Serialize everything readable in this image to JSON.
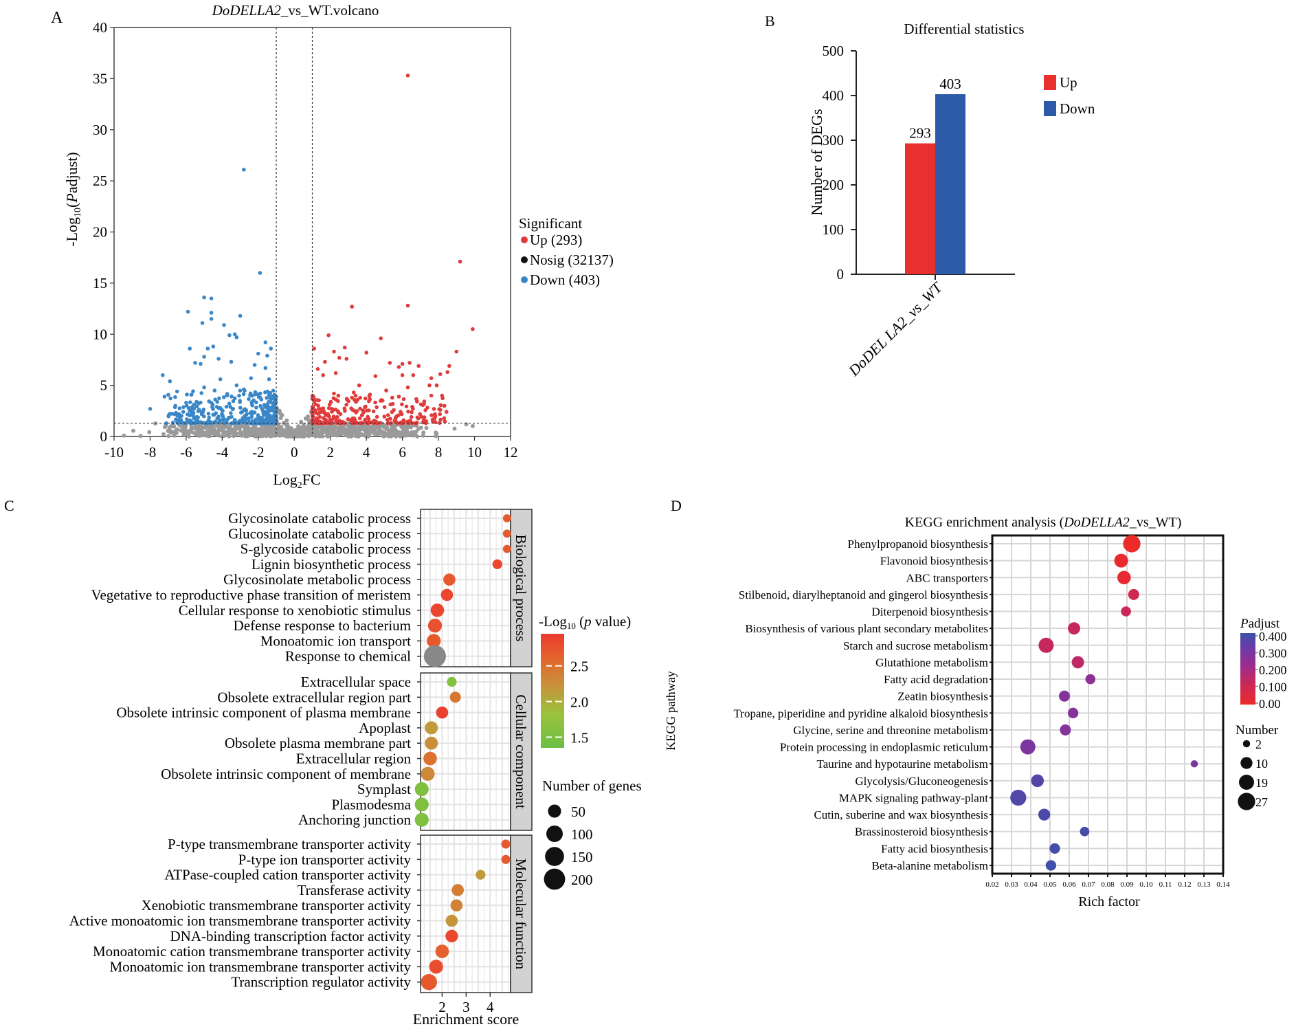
{
  "panels": {
    "A": "A",
    "B": "B",
    "C": "C",
    "D": "D"
  },
  "chart_data": [
    {
      "id": "volcano",
      "type": "scatter",
      "title_italic": "DoDELLA2",
      "title_rest": "_vs_WT.volcano",
      "xlabel": "Log2FC",
      "xlabel_main": "Log",
      "xlabel_sub": "2",
      "xlabel_tail": "FC",
      "ylabel_pre": "-Log",
      "ylabel_sub": "10",
      "ylabel_italic": "P",
      "ylabel_tail": "adjust)",
      "ylabel_open": "(",
      "xlim": [
        -10,
        12
      ],
      "ylim": [
        0,
        40
      ],
      "xticks": [
        "-10",
        "-8",
        "-6",
        "-4",
        "-2",
        "0",
        "2",
        "4",
        "6",
        "8",
        "10",
        "12"
      ],
      "xtick_values": [
        -10,
        -8,
        -6,
        -4,
        -2,
        0,
        2,
        4,
        6,
        8,
        10,
        12
      ],
      "yticks": [
        "0",
        "5",
        "10",
        "15",
        "20",
        "25",
        "30",
        "35",
        "40"
      ],
      "ytick_values": [
        0,
        5,
        10,
        15,
        20,
        25,
        30,
        35,
        40
      ],
      "thresholds": {
        "log2fc": [
          -1,
          1
        ],
        "neglog10_padj": 1.3
      },
      "legend_title": "Significant",
      "legend": [
        {
          "label": "Up (293)",
          "color": "#e03a3a"
        },
        {
          "label": "Nosig (32137)",
          "color": "#111111"
        },
        {
          "label": "Down (403)",
          "color": "#3a87c8"
        }
      ],
      "colors": {
        "up": "#e03a3a",
        "down": "#3a87c8",
        "nosig": "#9a9a9a"
      },
      "highlight_points": {
        "up": [
          [
            6.3,
            35.3
          ],
          [
            9.2,
            17.1
          ],
          [
            9.9,
            10.5
          ],
          [
            6.3,
            12.8
          ],
          [
            3.2,
            12.7
          ],
          [
            9.0,
            8.3
          ],
          [
            1.9,
            9.9
          ],
          [
            4.8,
            9.6
          ],
          [
            4.0,
            8.2
          ],
          [
            2.8,
            8.7
          ],
          [
            2.2,
            8.3
          ],
          [
            1.1,
            8.6
          ],
          [
            2.5,
            7.7
          ],
          [
            2.9,
            7.6
          ],
          [
            1.7,
            7.3
          ],
          [
            6.4,
            7.2
          ],
          [
            6.0,
            7.1
          ],
          [
            5.8,
            6.8
          ],
          [
            6.9,
            6.9
          ],
          [
            5.3,
            7.2
          ],
          [
            8.6,
            6.9
          ],
          [
            8.5,
            6.3
          ],
          [
            8.1,
            6.1
          ],
          [
            7.6,
            5.7
          ],
          [
            7.5,
            5.0
          ],
          [
            7.9,
            5.0
          ],
          [
            1.3,
            6.6
          ],
          [
            2.3,
            6.2
          ],
          [
            1.6,
            6.0
          ],
          [
            4.5,
            5.9
          ],
          [
            6.0,
            6.0
          ],
          [
            6.6,
            6.0
          ],
          [
            3.6,
            5.0
          ],
          [
            5.1,
            4.5
          ],
          [
            6.3,
            4.8
          ],
          [
            2.2,
            4.2
          ],
          [
            3.3,
            4.3
          ],
          [
            4.2,
            4.1
          ],
          [
            5.8,
            3.9
          ],
          [
            7.2,
            3.2
          ],
          [
            8.1,
            2.6
          ],
          [
            7.6,
            4.0
          ],
          [
            8.2,
            4.0
          ]
        ],
        "down": [
          [
            -2.8,
            26.1
          ],
          [
            -1.9,
            16.0
          ],
          [
            -5.0,
            13.6
          ],
          [
            -4.6,
            13.5
          ],
          [
            -5.9,
            12.2
          ],
          [
            -4.6,
            12.1
          ],
          [
            -3.0,
            11.8
          ],
          [
            -4.6,
            11.5
          ],
          [
            -5.1,
            11.1
          ],
          [
            -3.9,
            10.9
          ],
          [
            -3.3,
            10.0
          ],
          [
            -3.6,
            9.9
          ],
          [
            -3.2,
            9.7
          ],
          [
            -1.6,
            9.2
          ],
          [
            -2.0,
            8.1
          ],
          [
            -5.8,
            8.6
          ],
          [
            -4.5,
            8.8
          ],
          [
            -4.8,
            8.6
          ],
          [
            -1.3,
            8.6
          ],
          [
            -1.5,
            7.9
          ],
          [
            -5.0,
            7.8
          ],
          [
            -4.2,
            7.6
          ],
          [
            -5.5,
            7.2
          ],
          [
            -5.2,
            7.1
          ],
          [
            -3.5,
            7.3
          ],
          [
            -2.2,
            7.0
          ],
          [
            -7.3,
            6.0
          ],
          [
            -6.9,
            5.4
          ],
          [
            -7.2,
            3.9
          ],
          [
            -8.0,
            2.7
          ],
          [
            -6.6,
            3.0
          ],
          [
            -6.0,
            3.3
          ],
          [
            -5.7,
            4.1
          ],
          [
            -5.0,
            4.8
          ],
          [
            -4.1,
            5.6
          ],
          [
            -3.2,
            5.0
          ],
          [
            -2.8,
            4.6
          ],
          [
            -1.4,
            5.6
          ],
          [
            -1.6,
            6.7
          ],
          [
            -2.4,
            5.7
          ],
          [
            -7.1,
            1.3
          ]
        ]
      },
      "density": {
        "up": {
          "xmin": 1.0,
          "xmax": 8.6,
          "ymin": 1.3,
          "ymax": 4.0,
          "n": 260
        },
        "down": {
          "xmin": -7.0,
          "xmax": -1.0,
          "ymin": 1.3,
          "ymax": 4.5,
          "n": 360
        },
        "nosig": {
          "xmin": -9.7,
          "xmax": 10.4,
          "ymin": 0.0,
          "ymax": 1.3,
          "n": 900
        }
      }
    },
    {
      "id": "diff_stats",
      "type": "bar",
      "title": "Differential statistics",
      "ylabel": "Number of DEGs",
      "categories": [
        "DoDEL LA2_vs_WT"
      ],
      "series": [
        {
          "name": "Up",
          "values": [
            293
          ],
          "color": "#e8312f"
        },
        {
          "name": "Down",
          "values": [
            403
          ],
          "color": "#2d5aa8"
        }
      ],
      "data_labels": [
        "293",
        "403"
      ],
      "ylim": [
        0,
        500
      ],
      "yticks": [
        "0",
        "100",
        "200",
        "300",
        "400",
        "500"
      ],
      "ytick_values": [
        0,
        100,
        200,
        300,
        400,
        500
      ],
      "legend": [
        {
          "label": "Up",
          "color": "#e8312f"
        },
        {
          "label": "Down",
          "color": "#2d5aa8"
        }
      ],
      "legend_position": "right"
    },
    {
      "id": "go_enrichment",
      "type": "scatter",
      "xlabel": "Enrichment score",
      "xlim": [
        1.1,
        4.85
      ],
      "xticks": [
        "2",
        "3",
        "4"
      ],
      "xtick_values": [
        2,
        3,
        4
      ],
      "facets": [
        {
          "name": "Biological process",
          "terms": [
            {
              "label": "Glycosinolate catabolic process",
              "x": 4.7,
              "neglog10p": 2.7,
              "genes": 10
            },
            {
              "label": "Glucosinolate catabolic process",
              "x": 4.7,
              "neglog10p": 2.7,
              "genes": 10
            },
            {
              "label": "S-glycoside catabolic process",
              "x": 4.7,
              "neglog10p": 2.7,
              "genes": 10
            },
            {
              "label": "Lignin biosynthetic process",
              "x": 4.3,
              "neglog10p": 2.85,
              "genes": 20
            },
            {
              "label": "Glycosinolate metabolic process",
              "x": 2.3,
              "neglog10p": 2.7,
              "genes": 40
            },
            {
              "label": "Vegetative to reproductive phase transition of meristem",
              "x": 2.2,
              "neglog10p": 2.85,
              "genes": 40
            },
            {
              "label": "Cellular response to xenobiotic stimulus",
              "x": 1.8,
              "neglog10p": 2.85,
              "genes": 55
            },
            {
              "label": "Defense response to bacterium",
              "x": 1.7,
              "neglog10p": 2.75,
              "genes": 60
            },
            {
              "label": "Monoatomic ion transport",
              "x": 1.65,
              "neglog10p": 2.7,
              "genes": 60
            },
            {
              "label": "Response to chemical",
              "x": 1.7,
              "neglog10p": null,
              "genes": 200
            }
          ]
        },
        {
          "name": "Cellular component",
          "terms": [
            {
              "label": "Extracellular space",
              "x": 2.4,
              "neglog10p": 1.6,
              "genes": 20
            },
            {
              "label": "Obsolete extracellular region part",
              "x": 2.55,
              "neglog10p": 2.45,
              "genes": 30
            },
            {
              "label": "Obsolete intrinsic component of plasma membrane",
              "x": 2.0,
              "neglog10p": 2.9,
              "genes": 40
            },
            {
              "label": "Apoplast",
              "x": 1.55,
              "neglog10p": 2.15,
              "genes": 50
            },
            {
              "label": "Obsolete plasma membrane part",
              "x": 1.55,
              "neglog10p": 2.25,
              "genes": 50
            },
            {
              "label": "Extracellular region",
              "x": 1.5,
              "neglog10p": 2.5,
              "genes": 55
            },
            {
              "label": "Obsolete intrinsic component of membrane",
              "x": 1.4,
              "neglog10p": 2.3,
              "genes": 60
            },
            {
              "label": "Symplast",
              "x": 1.15,
              "neglog10p": 1.55,
              "genes": 60
            },
            {
              "label": "Plasmodesma",
              "x": 1.15,
              "neglog10p": 1.55,
              "genes": 60
            },
            {
              "label": "Anchoring junction",
              "x": 1.15,
              "neglog10p": 1.55,
              "genes": 60
            }
          ]
        },
        {
          "name": "Molecular function",
          "terms": [
            {
              "label": "P-type transmembrane transporter activity",
              "x": 4.65,
              "neglog10p": 2.7,
              "genes": 15
            },
            {
              "label": "P-type ion transporter activity",
              "x": 4.65,
              "neglog10p": 2.7,
              "genes": 15
            },
            {
              "label": "ATPase-coupled cation transporter activity",
              "x": 3.6,
              "neglog10p": 2.15,
              "genes": 20
            },
            {
              "label": "Transferase activity",
              "x": 2.65,
              "neglog10p": 2.4,
              "genes": 40
            },
            {
              "label": "Xenobiotic transmembrane transporter activity",
              "x": 2.6,
              "neglog10p": 2.35,
              "genes": 40
            },
            {
              "label": "Active monoatomic ion transmembrane transporter activity",
              "x": 2.4,
              "neglog10p": 2.2,
              "genes": 40
            },
            {
              "label": "DNA-binding transcription factor activity",
              "x": 2.4,
              "neglog10p": 2.85,
              "genes": 45
            },
            {
              "label": "Monoatomic cation transmembrane transporter activity",
              "x": 2.0,
              "neglog10p": 2.65,
              "genes": 55
            },
            {
              "label": "Monoatomic ion transmembrane transporter activity",
              "x": 1.75,
              "neglog10p": 2.8,
              "genes": 60
            },
            {
              "label": "Transcription regulator activity",
              "x": 1.45,
              "neglog10p": 2.7,
              "genes": 90
            }
          ]
        }
      ],
      "color_legend": {
        "title_pre": "-Log",
        "title_sub": "10",
        "title_mid": " (",
        "title_italic": "p",
        "title_tail": " value)",
        "ticks": [
          "2.5",
          "2.0",
          "1.5"
        ],
        "tick_values": [
          2.5,
          2.0,
          1.5
        ],
        "range": [
          1.35,
          2.95
        ],
        "colors": [
          "#6cbf45",
          "#9cc23c",
          "#c8913a",
          "#e4622d",
          "#ec3a2f"
        ]
      },
      "size_legend": {
        "title": "Number of genes",
        "labels": [
          "50",
          "100",
          "150",
          "200"
        ],
        "values": [
          50,
          100,
          150,
          200
        ]
      },
      "na_color": "#888888"
    },
    {
      "id": "kegg_enrichment",
      "type": "scatter",
      "title_pre": "KEGG enrichment analysis   (",
      "title_italic": "DoDELLA2",
      "title_tail": "_vs_WT)",
      "xlabel": "Rich factor",
      "ylabel": "KEGG pathway",
      "xlim": [
        0.02,
        0.14
      ],
      "xticks": [
        "0.02",
        "0.03",
        "0.04",
        "0.05",
        "0.06",
        "0.07",
        "0.08",
        "0.09",
        "0.10",
        "0.11",
        "0.12",
        "0.13",
        "0.14"
      ],
      "xtick_values": [
        0.02,
        0.03,
        0.04,
        0.05,
        0.06,
        0.07,
        0.08,
        0.09,
        0.1,
        0.11,
        0.12,
        0.13,
        0.14
      ],
      "pathways": [
        {
          "label": "Phenylpropanoid biosynthesis",
          "x": 0.0925,
          "padj": 0.0,
          "number": 27
        },
        {
          "label": "Flavonoid biosynthesis",
          "x": 0.087,
          "padj": 0.01,
          "number": 15
        },
        {
          "label": "ABC transporters",
          "x": 0.0885,
          "padj": 0.02,
          "number": 14
        },
        {
          "label": "Stilbenoid, diarylheptanoid and gingerol biosynthesis",
          "x": 0.0935,
          "padj": 0.1,
          "number": 8
        },
        {
          "label": "Diterpenoid biosynthesis",
          "x": 0.0895,
          "padj": 0.12,
          "number": 6
        },
        {
          "label": "Biosynthesis of various plant secondary metabolites",
          "x": 0.0625,
          "padj": 0.13,
          "number": 11
        },
        {
          "label": "Starch and sucrose metabolism",
          "x": 0.048,
          "padj": 0.13,
          "number": 19
        },
        {
          "label": "Glutathione metabolism",
          "x": 0.0645,
          "padj": 0.15,
          "number": 11
        },
        {
          "label": "Fatty acid degradation",
          "x": 0.071,
          "padj": 0.26,
          "number": 6
        },
        {
          "label": "Zeatin biosynthesis",
          "x": 0.0575,
          "padj": 0.28,
          "number": 8
        },
        {
          "label": "Tropane, piperidine and pyridine alkaloid biosynthesis",
          "x": 0.062,
          "padj": 0.28,
          "number": 7
        },
        {
          "label": "Glycine, serine and threonine metabolism",
          "x": 0.058,
          "padj": 0.28,
          "number": 8
        },
        {
          "label": "Protein processing in endoplasmic reticulum",
          "x": 0.0385,
          "padj": 0.3,
          "number": 19
        },
        {
          "label": "Taurine and hypotaurine metabolism",
          "x": 0.125,
          "padj": 0.3,
          "number": 2
        },
        {
          "label": "Glycolysis/Gluconeogenesis",
          "x": 0.0435,
          "padj": 0.37,
          "number": 12
        },
        {
          "label": "MAPK signaling pathway-plant",
          "x": 0.0335,
          "padj": 0.38,
          "number": 22
        },
        {
          "label": "Cutin, suberine and wax biosynthesis",
          "x": 0.047,
          "padj": 0.39,
          "number": 10
        },
        {
          "label": "Brassinosteroid biosynthesis",
          "x": 0.068,
          "padj": 0.4,
          "number": 5
        },
        {
          "label": "Fatty acid biosynthesis",
          "x": 0.0525,
          "padj": 0.4,
          "number": 7
        },
        {
          "label": "Beta-alanine metabolism",
          "x": 0.0505,
          "padj": 0.41,
          "number": 7
        }
      ],
      "color_legend": {
        "title_italic": "P",
        "title_tail": "adjust",
        "ticks": [
          "0.400",
          "0.300",
          "0.200",
          "0.100",
          "0.00"
        ],
        "tick_values": [
          0.4,
          0.3,
          0.2,
          0.1,
          0.0
        ],
        "range": [
          0.0,
          0.42
        ],
        "colors": [
          "#ec2b2b",
          "#c8285a",
          "#9b2c8f",
          "#6a3ba8",
          "#3b52a8"
        ]
      },
      "size_legend": {
        "title": "Number",
        "labels": [
          "2",
          "10",
          "19",
          "27"
        ],
        "values": [
          2,
          10,
          19,
          27
        ]
      }
    }
  ]
}
